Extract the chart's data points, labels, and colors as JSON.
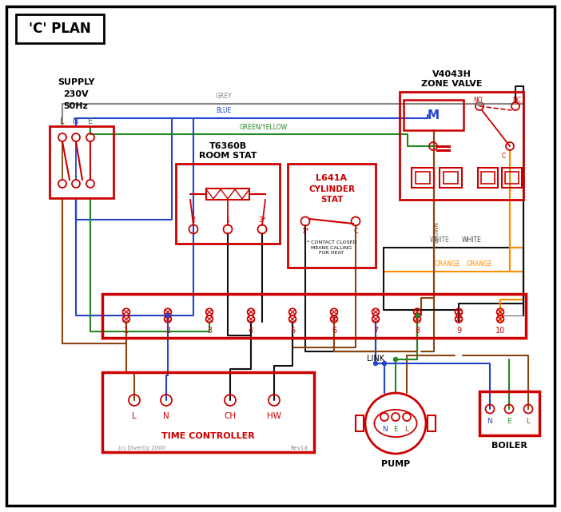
{
  "title": "'C' PLAN",
  "bg_color": "#ffffff",
  "border_color": "#000000",
  "red": "#cc0000",
  "wire_grey": "#888888",
  "wire_blue": "#2244cc",
  "wire_green": "#228822",
  "wire_brown": "#8B4513",
  "wire_black": "#111111",
  "wire_orange": "#FF8C00",
  "supply_text": "SUPPLY\n230V\n50Hz",
  "zone_valve_title1": "V4043H",
  "zone_valve_title2": "ZONE VALVE",
  "room_stat_title": "T6360B\nROOM STAT",
  "cyl_stat_title": "L641A\nCYLINDER\nSTAT",
  "contact_note": "* CONTACT CLOSED\nMEANS CALLING\nFOR HEAT",
  "link_label": "LINK",
  "tc_label": "TIME CONTROLLER",
  "pump_label": "PUMP",
  "boiler_label": "BOILER",
  "copyright": "(c) DiverOz 2000",
  "rev": "Rev1d"
}
